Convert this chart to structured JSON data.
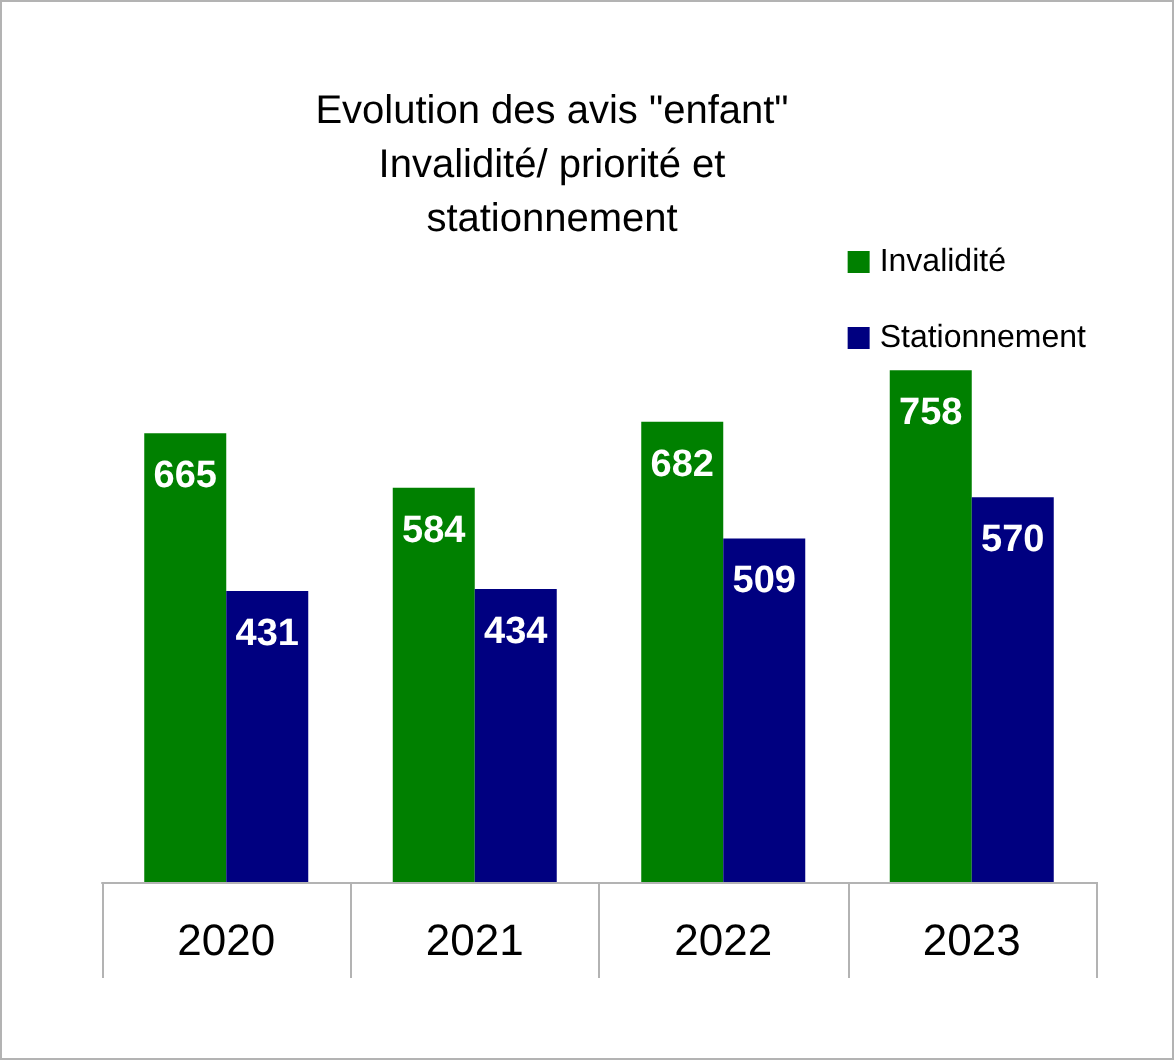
{
  "chart_data": {
    "type": "bar",
    "title": "Evolution des avis \"enfant\"\nInvalidité/ priorité et\nstationnement",
    "categories": [
      "2020",
      "2021",
      "2022",
      "2023"
    ],
    "series": [
      {
        "name": "Invalidité",
        "color": "#008000",
        "values": [
          665,
          584,
          682,
          758
        ]
      },
      {
        "name": "Stationnement",
        "color": "#000080",
        "values": [
          431,
          434,
          509,
          570
        ]
      }
    ],
    "data_labels": true,
    "legend": "top right",
    "grid": false
  }
}
